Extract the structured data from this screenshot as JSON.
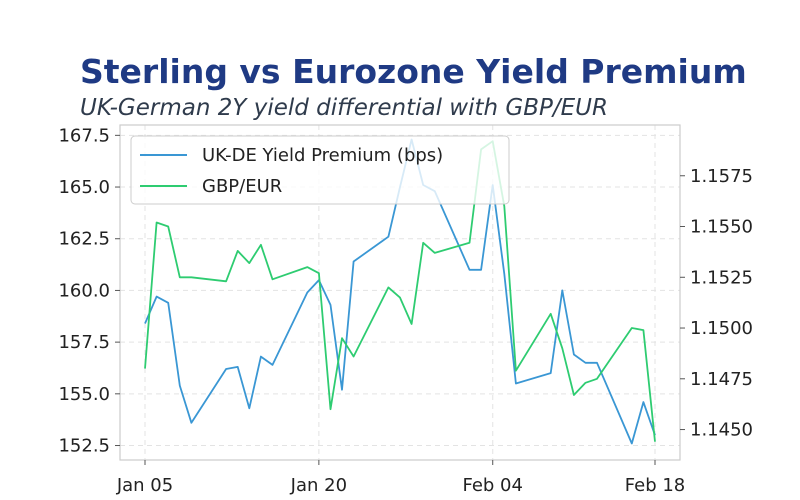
{
  "title": "Sterling vs Eurozone Yield Premium",
  "subtitle": "UK-German 2Y yield differential with GBP/EUR",
  "colors": {
    "premium": "#3a97d4",
    "fx": "#2ecc71",
    "title": "#1f3a84",
    "grid": "#e3e3e3"
  },
  "chart_data": {
    "type": "line",
    "x_type": "date",
    "x_ticks": [
      "Jan 05",
      "Jan 20",
      "Feb 04",
      "Feb 18"
    ],
    "x_tick_dates": [
      "2026-01-05",
      "2026-01-20",
      "2026-02-04",
      "2026-02-18"
    ],
    "xlim": [
      "2026-01-05",
      "2026-02-18"
    ],
    "grid": true,
    "legend_position": "top-left",
    "left_axis": {
      "ylim": [
        151.8,
        168.0
      ],
      "ticks": [
        152.5,
        155.0,
        157.5,
        160.0,
        162.5,
        165.0,
        167.5
      ],
      "tick_labels": [
        "152.5",
        "155.0",
        "157.5",
        "160.0",
        "162.5",
        "165.0",
        "167.5"
      ]
    },
    "right_axis": {
      "ylim": [
        1.1435,
        1.16
      ],
      "ticks": [
        1.145,
        1.1475,
        1.15,
        1.1525,
        1.155,
        1.1575
      ],
      "tick_labels": [
        "1.1450",
        "1.1475",
        "1.1500",
        "1.1525",
        "1.1550",
        "1.1575"
      ]
    },
    "series": [
      {
        "name": "UK-DE Yield Premium (bps)",
        "axis": "left",
        "x": [
          "2026-01-05",
          "2026-01-06",
          "2026-01-07",
          "2026-01-08",
          "2026-01-09",
          "2026-01-12",
          "2026-01-13",
          "2026-01-14",
          "2026-01-15",
          "2026-01-16",
          "2026-01-19",
          "2026-01-20",
          "2026-01-21",
          "2026-01-22",
          "2026-01-23",
          "2026-01-26",
          "2026-01-27",
          "2026-01-28",
          "2026-01-29",
          "2026-01-30",
          "2026-02-02",
          "2026-02-03",
          "2026-02-04",
          "2026-02-05",
          "2026-02-06",
          "2026-02-09",
          "2026-02-10",
          "2026-02-11",
          "2026-02-12",
          "2026-02-13",
          "2026-02-16",
          "2026-02-17",
          "2026-02-18"
        ],
        "values": [
          158.4,
          159.7,
          159.4,
          155.4,
          153.6,
          156.2,
          156.3,
          154.3,
          156.8,
          156.4,
          159.9,
          160.5,
          159.3,
          155.2,
          161.4,
          162.6,
          165.0,
          167.3,
          165.1,
          164.8,
          161.0,
          161.0,
          165.1,
          160.8,
          155.5,
          156.0,
          160.0,
          156.9,
          156.5,
          156.5,
          152.6,
          154.6,
          153.0
        ]
      },
      {
        "name": "GBP/EUR",
        "axis": "right",
        "x": [
          "2026-01-05",
          "2026-01-06",
          "2026-01-07",
          "2026-01-08",
          "2026-01-09",
          "2026-01-12",
          "2026-01-13",
          "2026-01-14",
          "2026-01-15",
          "2026-01-16",
          "2026-01-19",
          "2026-01-20",
          "2026-01-21",
          "2026-01-22",
          "2026-01-23",
          "2026-01-26",
          "2026-01-27",
          "2026-01-28",
          "2026-01-29",
          "2026-01-30",
          "2026-02-02",
          "2026-02-03",
          "2026-02-04",
          "2026-02-05",
          "2026-02-06",
          "2026-02-09",
          "2026-02-10",
          "2026-02-11",
          "2026-02-12",
          "2026-02-13",
          "2026-02-16",
          "2026-02-17",
          "2026-02-18"
        ],
        "values": [
          1.148,
          1.1552,
          1.155,
          1.1525,
          1.1525,
          1.1523,
          1.1538,
          1.1532,
          1.1541,
          1.1524,
          1.153,
          1.1527,
          1.146,
          1.1495,
          1.1486,
          1.152,
          1.1515,
          1.1502,
          1.1542,
          1.1537,
          1.1542,
          1.1588,
          1.1592,
          1.156,
          1.1479,
          1.1507,
          1.149,
          1.1467,
          1.1473,
          1.1475,
          1.15,
          1.1499,
          1.1444
        ]
      }
    ]
  }
}
